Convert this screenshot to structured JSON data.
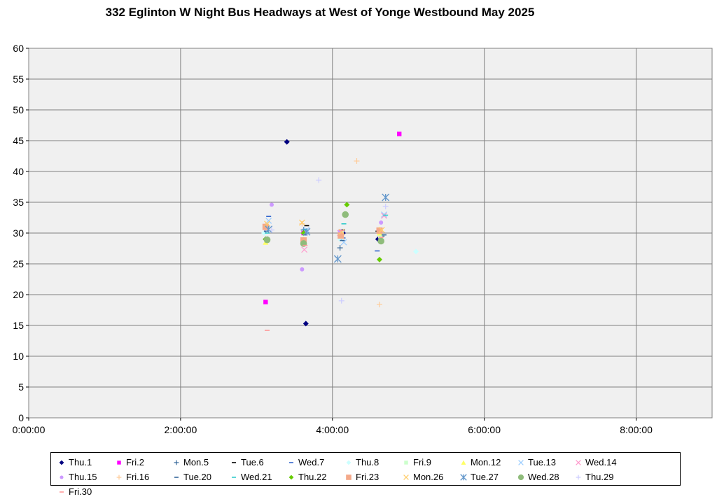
{
  "chart_data": {
    "type": "scatter",
    "title": "332 Eglinton W Night Bus Headways at West of Yonge Westbound May 2025",
    "xlabel": "",
    "ylabel": "",
    "xlim": [
      0,
      9
    ],
    "ylim": [
      0,
      60
    ],
    "x_unit": "hours",
    "x_ticks": [
      0,
      2,
      4,
      6,
      8
    ],
    "x_tick_labels": [
      "0:00:00",
      "2:00:00",
      "4:00:00",
      "6:00:00",
      "8:00:00"
    ],
    "y_ticks": [
      0,
      5,
      10,
      15,
      20,
      25,
      30,
      35,
      40,
      45,
      50,
      55,
      60
    ],
    "y_tick_labels": [
      "0",
      "5",
      "10",
      "15",
      "20",
      "25",
      "30",
      "35",
      "40",
      "45",
      "50",
      "55",
      "60"
    ],
    "grid": true,
    "legend_position": "bottom",
    "series": [
      {
        "name": "Thu.1",
        "color": "#000080",
        "marker": "diamond",
        "points": [
          [
            3.12,
            29.0
          ],
          [
            3.4,
            44.8
          ],
          [
            3.65,
            15.3
          ],
          [
            4.14,
            30.0
          ],
          [
            4.6,
            29.0
          ]
        ]
      },
      {
        "name": "Fri.2",
        "color": "#ff00ff",
        "marker": "square",
        "points": [
          [
            3.12,
            18.8
          ],
          [
            3.62,
            30.0
          ],
          [
            4.12,
            30.0
          ],
          [
            4.88,
            46.1
          ]
        ]
      },
      {
        "name": "Mon.5",
        "color": "#336699",
        "marker": "plus",
        "points": [
          [
            3.14,
            29.0
          ],
          [
            3.62,
            30.5
          ],
          [
            4.1,
            27.6
          ],
          [
            4.65,
            29.5
          ]
        ]
      },
      {
        "name": "Tue.6",
        "color": "#000000",
        "marker": "dash",
        "points": [
          [
            3.13,
            29.0
          ],
          [
            3.66,
            31.2
          ],
          [
            4.13,
            30.5
          ],
          [
            4.6,
            30.3
          ]
        ]
      },
      {
        "name": "Wed.7",
        "color": "#3366cc",
        "marker": "dash",
        "points": [
          [
            3.16,
            32.7
          ],
          [
            3.64,
            29.7
          ],
          [
            4.14,
            29.2
          ],
          [
            4.59,
            27.1
          ]
        ]
      },
      {
        "name": "Thu.8",
        "color": "#ccffff",
        "marker": "diamond",
        "points": [
          [
            3.1,
            30.0
          ],
          [
            3.62,
            29.0
          ],
          [
            4.1,
            29.0
          ],
          [
            5.1,
            27.0
          ]
        ]
      },
      {
        "name": "Fri.9",
        "color": "#ccffcc",
        "marker": "square",
        "points": [
          [
            3.14,
            31.0
          ],
          [
            3.62,
            28.5
          ],
          [
            4.12,
            30.0
          ],
          [
            4.63,
            29.5
          ]
        ]
      },
      {
        "name": "Mon.12",
        "color": "#ffff66",
        "marker": "triangle",
        "points": [
          [
            3.12,
            28.5
          ],
          [
            3.62,
            29.0
          ],
          [
            4.12,
            29.5
          ],
          [
            4.62,
            30.0
          ]
        ]
      },
      {
        "name": "Tue.13",
        "color": "#99ccff",
        "marker": "x",
        "points": [
          [
            3.16,
            32.0
          ],
          [
            3.66,
            30.5
          ],
          [
            4.15,
            28.5
          ],
          [
            4.68,
            33.0
          ]
        ]
      },
      {
        "name": "Wed.14",
        "color": "#ff99cc",
        "marker": "x",
        "points": [
          [
            3.14,
            30.8
          ],
          [
            3.63,
            27.3
          ],
          [
            4.1,
            30.0
          ],
          [
            4.68,
            32.8
          ]
        ]
      },
      {
        "name": "Thu.15",
        "color": "#cc99ff",
        "marker": "circle-small",
        "points": [
          [
            3.2,
            34.6
          ],
          [
            3.6,
            24.1
          ],
          [
            4.1,
            30.3
          ],
          [
            4.64,
            31.7
          ]
        ]
      },
      {
        "name": "Fri.16",
        "color": "#ffcc99",
        "marker": "plus",
        "points": [
          [
            3.12,
            31.2
          ],
          [
            3.6,
            31.5
          ],
          [
            4.32,
            41.7
          ],
          [
            4.62,
            18.4
          ]
        ]
      },
      {
        "name": "Tue.20",
        "color": "#336699",
        "marker": "dash",
        "points": [
          [
            3.13,
            30.3
          ],
          [
            3.66,
            30.0
          ],
          [
            4.13,
            28.8
          ],
          [
            4.68,
            29.7
          ]
        ]
      },
      {
        "name": "Wed.21",
        "color": "#33cccc",
        "marker": "dash",
        "points": [
          [
            3.14,
            30.0
          ],
          [
            3.64,
            30.6
          ],
          [
            4.15,
            31.5
          ],
          [
            4.7,
            32.9
          ]
        ]
      },
      {
        "name": "Thu.22",
        "color": "#66cc00",
        "marker": "diamond",
        "points": [
          [
            3.12,
            29.0
          ],
          [
            3.62,
            30.0
          ],
          [
            4.19,
            34.6
          ],
          [
            4.62,
            25.7
          ]
        ]
      },
      {
        "name": "Fri.23",
        "color": "#f4a98a",
        "marker": "square-big",
        "points": [
          [
            3.12,
            31.0
          ],
          [
            3.62,
            28.8
          ],
          [
            4.11,
            29.6
          ],
          [
            4.62,
            30.4
          ]
        ]
      },
      {
        "name": "Mon.26",
        "color": "#ffcc66",
        "marker": "x",
        "points": [
          [
            3.14,
            31.5
          ],
          [
            3.6,
            31.7
          ],
          [
            4.12,
            30.2
          ],
          [
            4.65,
            30.5
          ]
        ]
      },
      {
        "name": "Tue.27",
        "color": "#6699cc",
        "marker": "x-big",
        "points": [
          [
            3.16,
            30.6
          ],
          [
            3.66,
            30.2
          ],
          [
            4.07,
            25.8
          ],
          [
            4.7,
            35.8
          ]
        ]
      },
      {
        "name": "Wed.28",
        "color": "#8fbc7b",
        "marker": "circle",
        "points": [
          [
            3.14,
            28.9
          ],
          [
            3.62,
            28.3
          ],
          [
            4.17,
            33.0
          ],
          [
            4.64,
            28.7
          ]
        ]
      },
      {
        "name": "Thu.29",
        "color": "#ccccff",
        "marker": "plus",
        "points": [
          [
            3.2,
            30.5
          ],
          [
            3.82,
            38.6
          ],
          [
            4.12,
            19.0
          ],
          [
            4.7,
            34.3
          ]
        ]
      },
      {
        "name": "Fri.30",
        "color": "#ff9999",
        "marker": "dash",
        "points": [
          [
            3.14,
            14.2
          ],
          [
            3.64,
            28.0
          ],
          [
            4.12,
            30.4
          ],
          [
            4.64,
            29.3
          ]
        ]
      }
    ]
  }
}
